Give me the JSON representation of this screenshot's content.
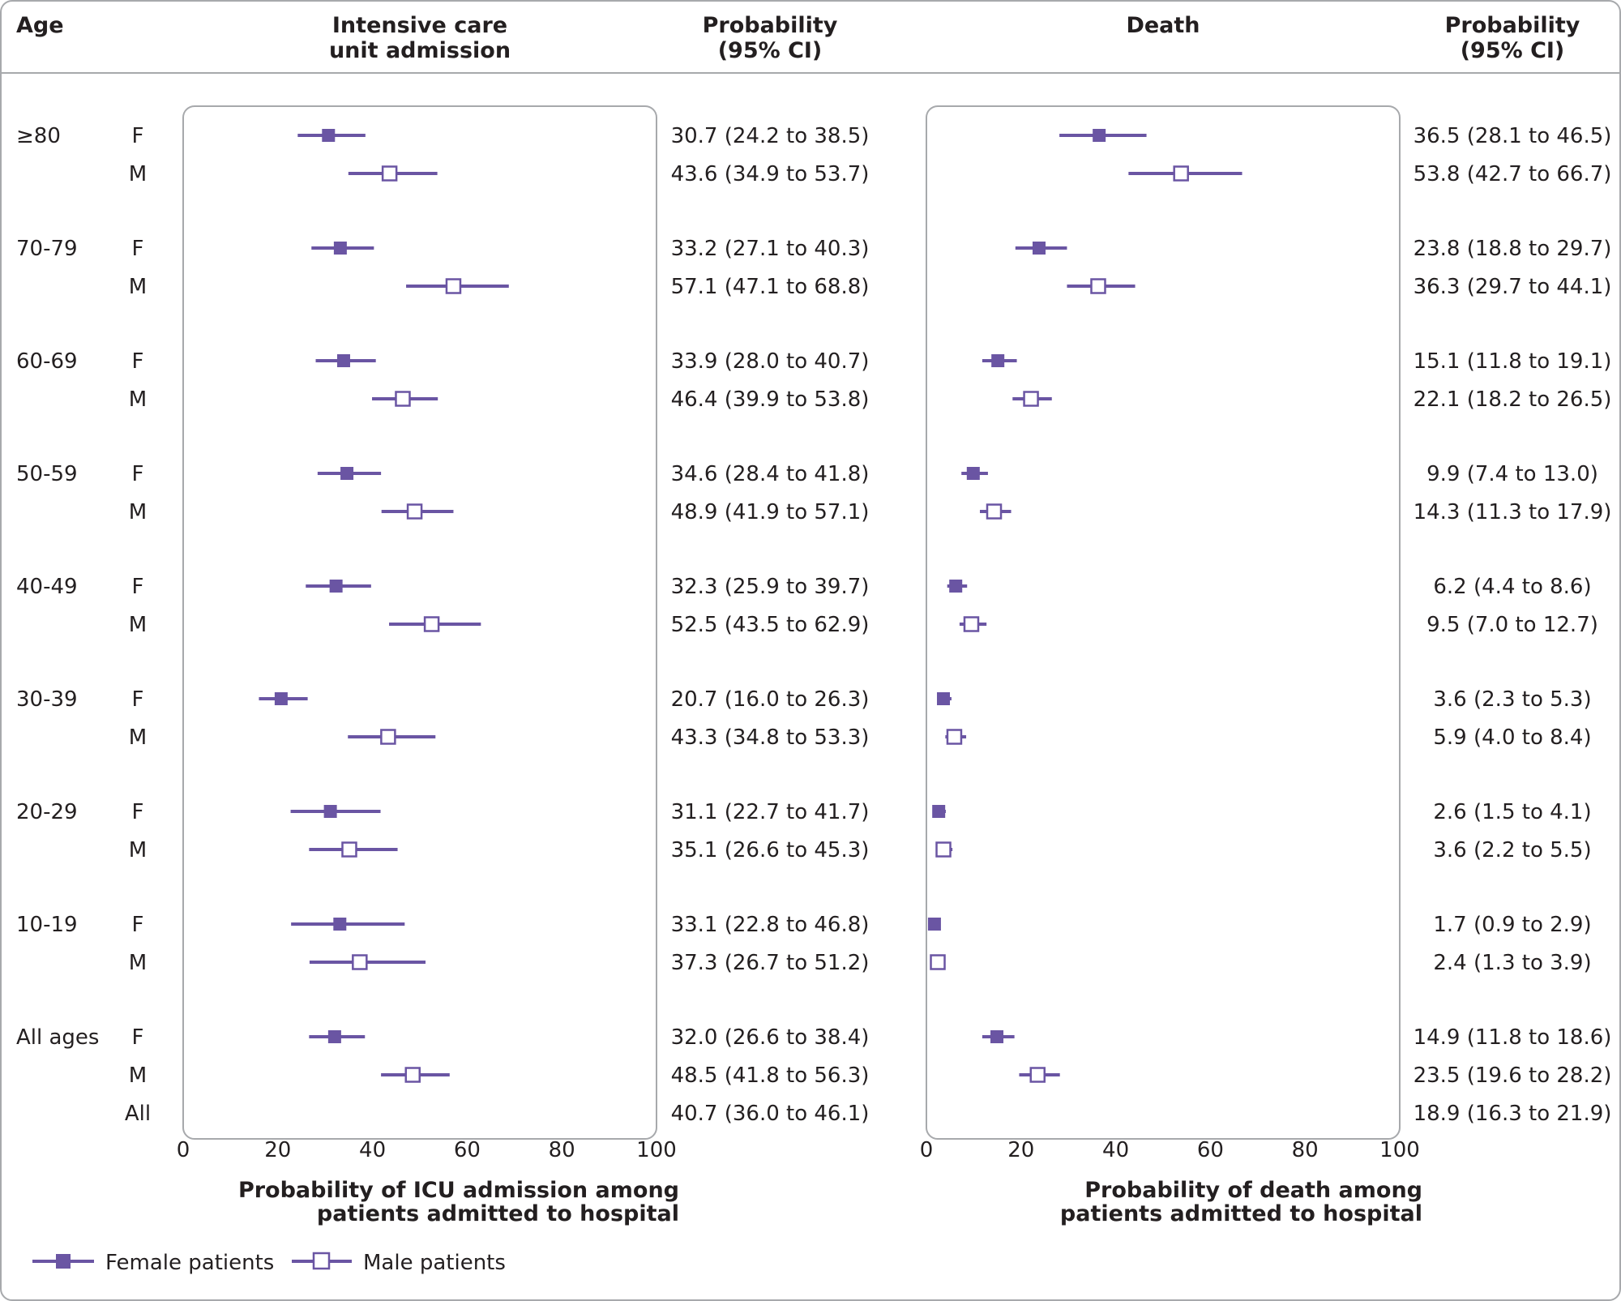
{
  "headers": {
    "age": "Age",
    "icu_title_line1": "Intensive care",
    "icu_title_line2": "unit admission",
    "prob_line1": "Probability",
    "prob_line2": "(95% CI)",
    "death_title": "Death"
  },
  "legend": {
    "female": "Female patients",
    "male": "Male patients"
  },
  "colors": {
    "accent": "#6a55a3",
    "text": "#231f20",
    "panel_border": "#a7a9ac"
  },
  "chart_data": [
    {
      "type": "forest",
      "panel": "icu",
      "xlabel_line1": "Probability of ICU admission among",
      "xlabel_line2": "patients admitted to hospital",
      "xlim": [
        0,
        100
      ],
      "xticks": [
        "0",
        "20",
        "40",
        "60",
        "80",
        "100"
      ],
      "groups": [
        {
          "age": "≥80",
          "rows": [
            {
              "sex": "F",
              "est": 30.7,
              "lo": 24.2,
              "hi": 38.5,
              "text": "30.7 (24.2 to 38.5)"
            },
            {
              "sex": "M",
              "est": 43.6,
              "lo": 34.9,
              "hi": 53.7,
              "text": "43.6 (34.9 to 53.7)"
            }
          ]
        },
        {
          "age": "70-79",
          "rows": [
            {
              "sex": "F",
              "est": 33.2,
              "lo": 27.1,
              "hi": 40.3,
              "text": "33.2 (27.1 to 40.3)"
            },
            {
              "sex": "M",
              "est": 57.1,
              "lo": 47.1,
              "hi": 68.8,
              "text": "57.1 (47.1 to 68.8)"
            }
          ]
        },
        {
          "age": "60-69",
          "rows": [
            {
              "sex": "F",
              "est": 33.9,
              "lo": 28.0,
              "hi": 40.7,
              "text": "33.9 (28.0 to 40.7)"
            },
            {
              "sex": "M",
              "est": 46.4,
              "lo": 39.9,
              "hi": 53.8,
              "text": "46.4 (39.9 to 53.8)"
            }
          ]
        },
        {
          "age": "50-59",
          "rows": [
            {
              "sex": "F",
              "est": 34.6,
              "lo": 28.4,
              "hi": 41.8,
              "text": "34.6 (28.4 to 41.8)"
            },
            {
              "sex": "M",
              "est": 48.9,
              "lo": 41.9,
              "hi": 57.1,
              "text": "48.9 (41.9 to 57.1)"
            }
          ]
        },
        {
          "age": "40-49",
          "rows": [
            {
              "sex": "F",
              "est": 32.3,
              "lo": 25.9,
              "hi": 39.7,
              "text": "32.3 (25.9 to 39.7)"
            },
            {
              "sex": "M",
              "est": 52.5,
              "lo": 43.5,
              "hi": 62.9,
              "text": "52.5 (43.5 to 62.9)"
            }
          ]
        },
        {
          "age": "30-39",
          "rows": [
            {
              "sex": "F",
              "est": 20.7,
              "lo": 16.0,
              "hi": 26.3,
              "text": "20.7 (16.0 to 26.3)"
            },
            {
              "sex": "M",
              "est": 43.3,
              "lo": 34.8,
              "hi": 53.3,
              "text": "43.3 (34.8 to 53.3)"
            }
          ]
        },
        {
          "age": "20-29",
          "rows": [
            {
              "sex": "F",
              "est": 31.1,
              "lo": 22.7,
              "hi": 41.7,
              "text": "31.1 (22.7 to 41.7)"
            },
            {
              "sex": "M",
              "est": 35.1,
              "lo": 26.6,
              "hi": 45.3,
              "text": "35.1 (26.6 to 45.3)"
            }
          ]
        },
        {
          "age": "10-19",
          "rows": [
            {
              "sex": "F",
              "est": 33.1,
              "lo": 22.8,
              "hi": 46.8,
              "text": "33.1 (22.8 to 46.8)"
            },
            {
              "sex": "M",
              "est": 37.3,
              "lo": 26.7,
              "hi": 51.2,
              "text": "37.3 (26.7 to 51.2)"
            }
          ]
        },
        {
          "age": "All ages",
          "rows": [
            {
              "sex": "F",
              "est": 32.0,
              "lo": 26.6,
              "hi": 38.4,
              "text": "32.0 (26.6 to 38.4)"
            },
            {
              "sex": "M",
              "est": 48.5,
              "lo": 41.8,
              "hi": 56.3,
              "text": "48.5 (41.8 to 56.3)"
            },
            {
              "sex": "All",
              "est": null,
              "lo": null,
              "hi": null,
              "text": "40.7 (36.0 to 46.1)"
            }
          ]
        }
      ]
    },
    {
      "type": "forest",
      "panel": "death",
      "xlabel_line1": "Probability of death among",
      "xlabel_line2": "patients admitted to hospital",
      "xlim": [
        0,
        100
      ],
      "xticks": [
        "0",
        "20",
        "40",
        "60",
        "80",
        "100"
      ],
      "groups": [
        {
          "age": "≥80",
          "rows": [
            {
              "sex": "F",
              "est": 36.5,
              "lo": 28.1,
              "hi": 46.5,
              "text": "36.5 (28.1 to 46.5)"
            },
            {
              "sex": "M",
              "est": 53.8,
              "lo": 42.7,
              "hi": 66.7,
              "text": "53.8 (42.7 to 66.7)"
            }
          ]
        },
        {
          "age": "70-79",
          "rows": [
            {
              "sex": "F",
              "est": 23.8,
              "lo": 18.8,
              "hi": 29.7,
              "text": "23.8 (18.8 to 29.7)"
            },
            {
              "sex": "M",
              "est": 36.3,
              "lo": 29.7,
              "hi": 44.1,
              "text": "36.3 (29.7 to 44.1)"
            }
          ]
        },
        {
          "age": "60-69",
          "rows": [
            {
              "sex": "F",
              "est": 15.1,
              "lo": 11.8,
              "hi": 19.1,
              "text": "15.1 (11.8 to 19.1)"
            },
            {
              "sex": "M",
              "est": 22.1,
              "lo": 18.2,
              "hi": 26.5,
              "text": "22.1 (18.2 to 26.5)"
            }
          ]
        },
        {
          "age": "50-59",
          "rows": [
            {
              "sex": "F",
              "est": 9.9,
              "lo": 7.4,
              "hi": 13.0,
              "text": "9.9 (7.4 to 13.0)"
            },
            {
              "sex": "M",
              "est": 14.3,
              "lo": 11.3,
              "hi": 17.9,
              "text": "14.3 (11.3 to 17.9)"
            }
          ]
        },
        {
          "age": "40-49",
          "rows": [
            {
              "sex": "F",
              "est": 6.2,
              "lo": 4.4,
              "hi": 8.6,
              "text": "6.2 (4.4 to 8.6)"
            },
            {
              "sex": "M",
              "est": 9.5,
              "lo": 7.0,
              "hi": 12.7,
              "text": "9.5 (7.0 to 12.7)"
            }
          ]
        },
        {
          "age": "30-39",
          "rows": [
            {
              "sex": "F",
              "est": 3.6,
              "lo": 2.3,
              "hi": 5.3,
              "text": "3.6 (2.3 to 5.3)"
            },
            {
              "sex": "M",
              "est": 5.9,
              "lo": 4.0,
              "hi": 8.4,
              "text": "5.9 (4.0 to 8.4)"
            }
          ]
        },
        {
          "age": "20-29",
          "rows": [
            {
              "sex": "F",
              "est": 2.6,
              "lo": 1.5,
              "hi": 4.1,
              "text": "2.6 (1.5 to 4.1)"
            },
            {
              "sex": "M",
              "est": 3.6,
              "lo": 2.2,
              "hi": 5.5,
              "text": "3.6 (2.2 to 5.5)"
            }
          ]
        },
        {
          "age": "10-19",
          "rows": [
            {
              "sex": "F",
              "est": 1.7,
              "lo": 0.9,
              "hi": 2.9,
              "text": "1.7 (0.9 to 2.9)"
            },
            {
              "sex": "M",
              "est": 2.4,
              "lo": 1.3,
              "hi": 3.9,
              "text": "2.4 (1.3 to 3.9)"
            }
          ]
        },
        {
          "age": "All ages",
          "rows": [
            {
              "sex": "F",
              "est": 14.9,
              "lo": 11.8,
              "hi": 18.6,
              "text": "14.9 (11.8 to 18.6)"
            },
            {
              "sex": "M",
              "est": 23.5,
              "lo": 19.6,
              "hi": 28.2,
              "text": "23.5 (19.6 to 28.2)"
            },
            {
              "sex": "All",
              "est": null,
              "lo": null,
              "hi": null,
              "text": "18.9 (16.3 to 21.9)"
            }
          ]
        }
      ]
    }
  ]
}
